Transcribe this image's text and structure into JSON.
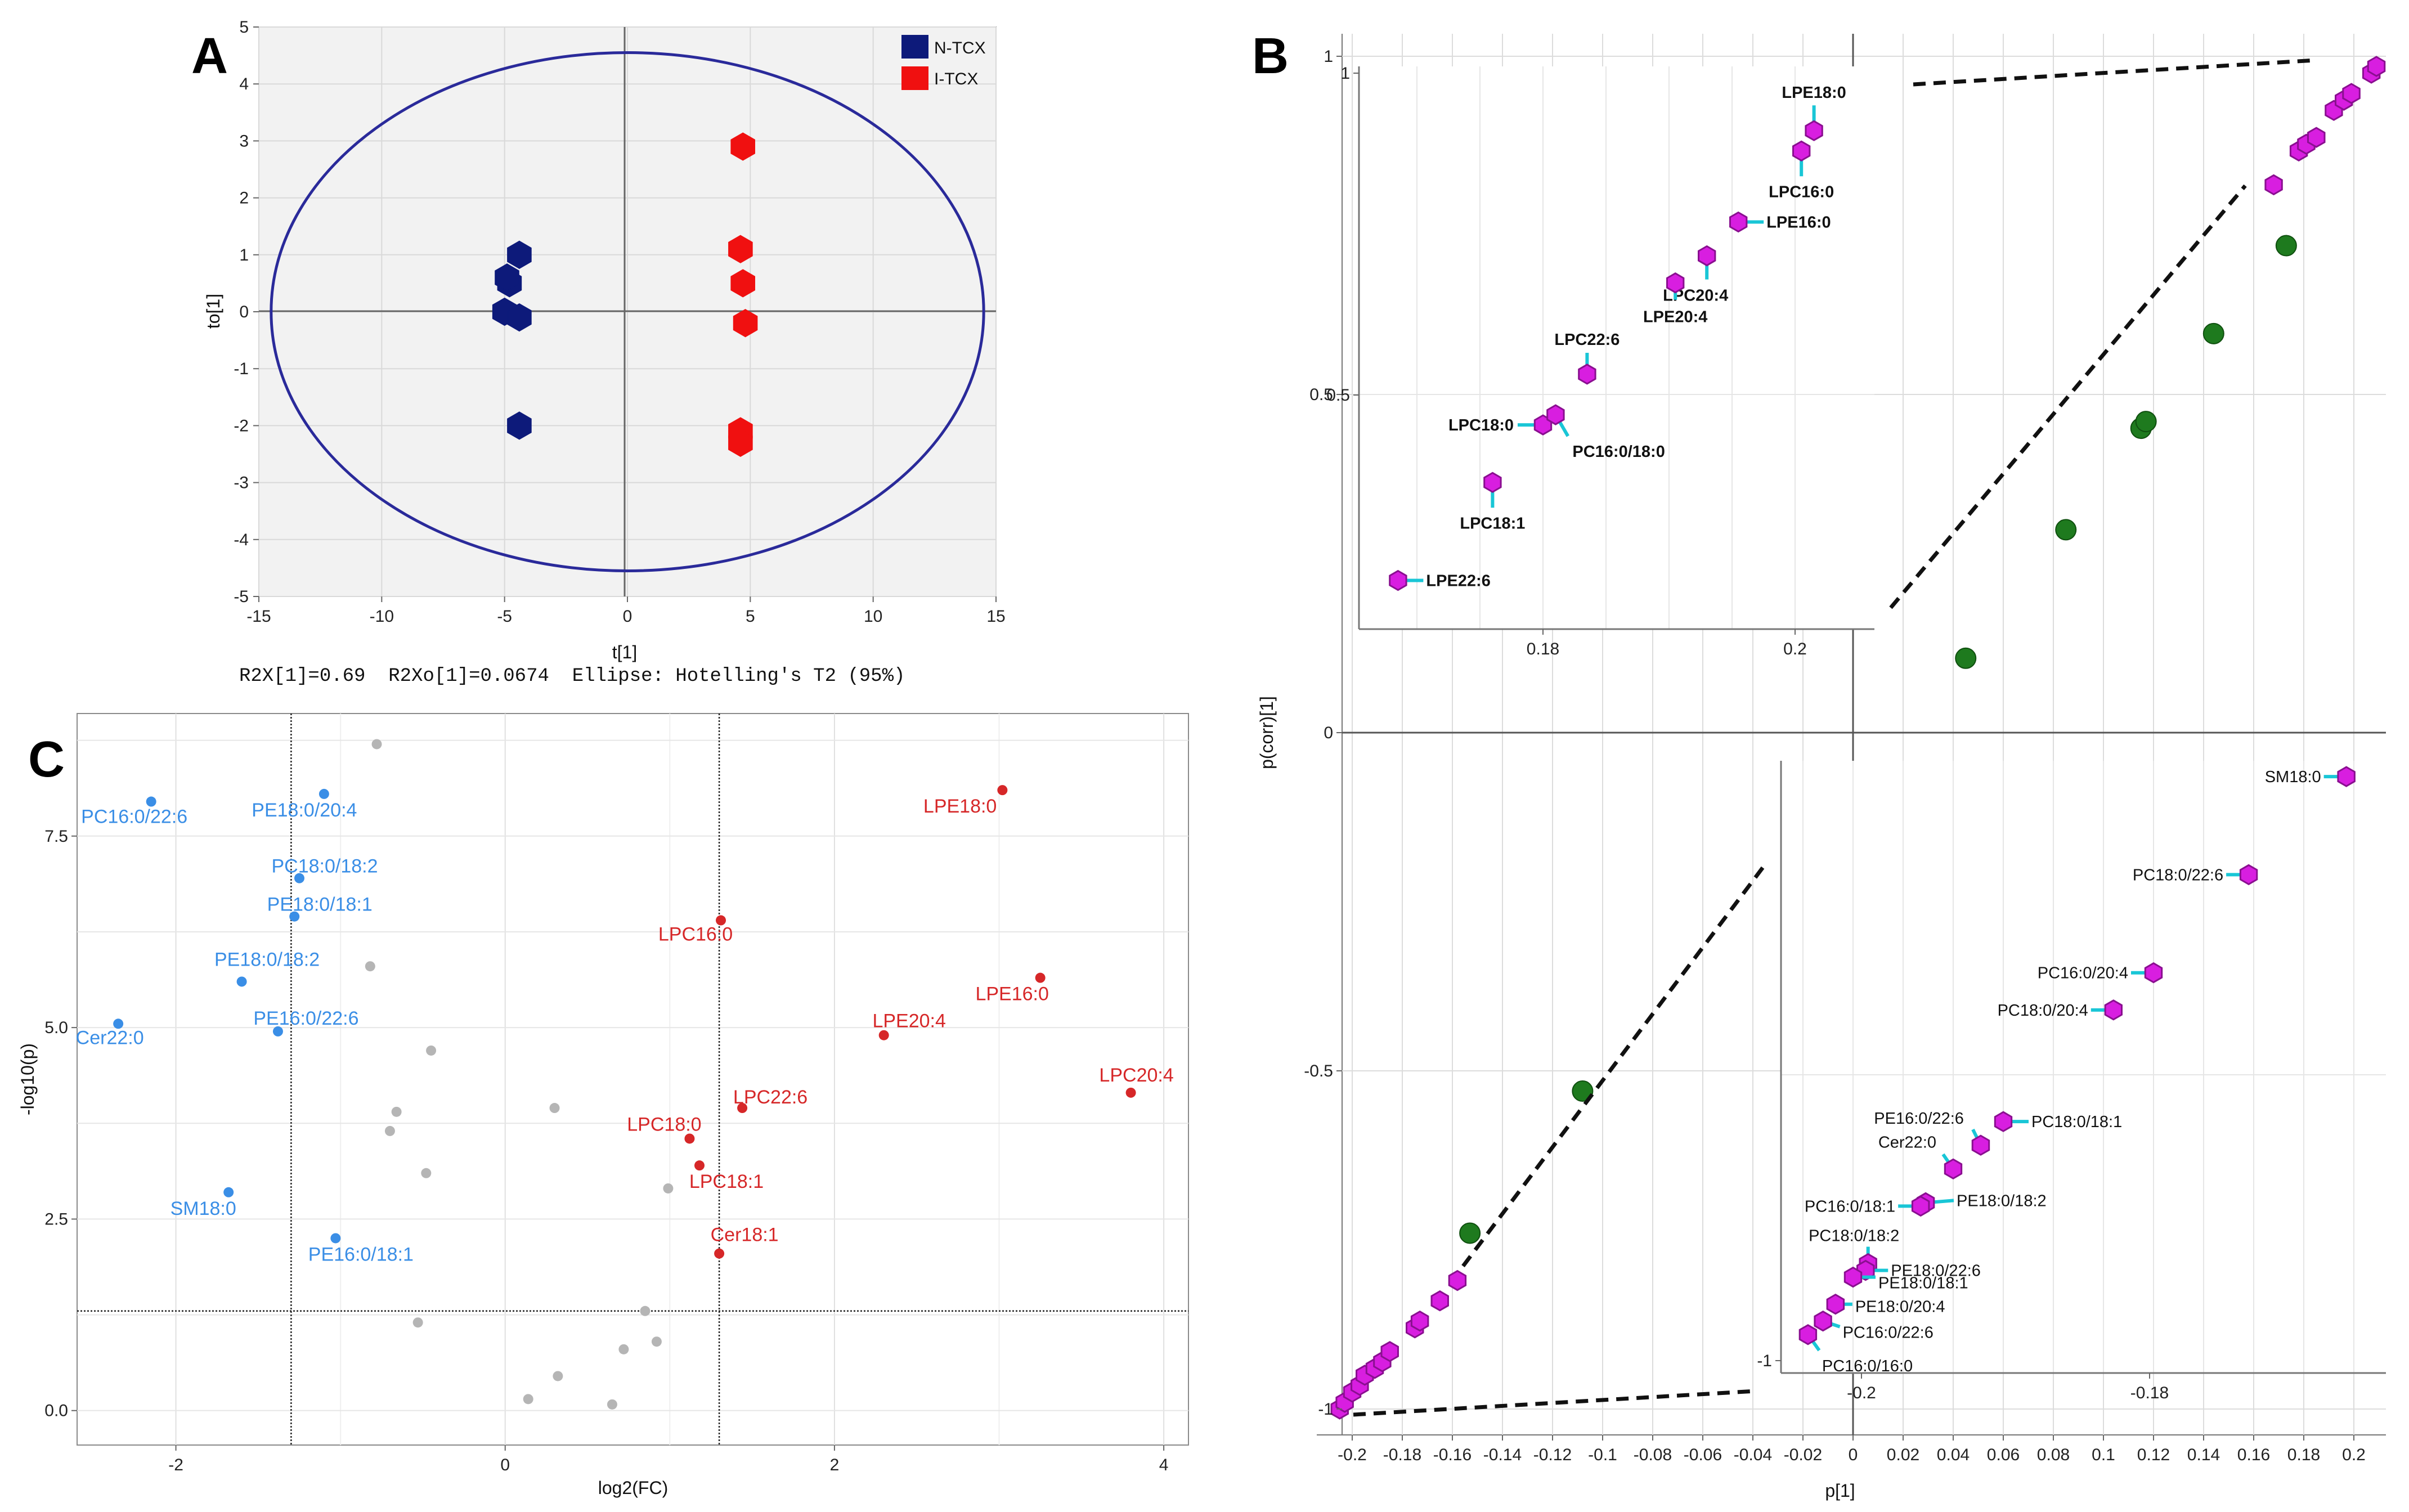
{
  "panels": {
    "a": "A",
    "b": "B",
    "c": "C"
  },
  "colors": {
    "ntcx": "#0d1a7a",
    "itcx": "#f01010",
    "ellipse": "#2a2a9a",
    "up": "#d62728",
    "down": "#3a8ee6",
    "ns": "#b5b5b5",
    "magenta": "#d81ee0",
    "cyan": "#19c6d6",
    "green": "#1e7a1e"
  },
  "chart_data": [
    {
      "panel": "A",
      "type": "scatter",
      "title": "",
      "xlabel": "t[1]",
      "ylabel": "to[1]",
      "xlim": [
        -15,
        15
      ],
      "ylim": [
        -5,
        5
      ],
      "xticks": [
        "-15",
        "-10",
        "-5",
        "0",
        "5",
        "10",
        "15"
      ],
      "yticks": [
        "-5",
        "-4",
        "-3",
        "-2",
        "-1",
        "0",
        "1",
        "2",
        "3",
        "4",
        "5"
      ],
      "footer": "R2X[1]=0.69  R2Xo[1]=0.0674  Ellipse: Hotelling's T2 (95%)",
      "legend": [
        {
          "name": "N-TCX",
          "color": "#0d1a7a"
        },
        {
          "name": "I-TCX",
          "color": "#f01010"
        }
      ],
      "ellipse": {
        "rx": 14.5,
        "ry": 4.55
      },
      "series": [
        {
          "name": "N-TCX",
          "points": [
            [
              -4.4,
              1.0
            ],
            [
              -4.8,
              0.5
            ],
            [
              -4.9,
              0.6
            ],
            [
              -5.0,
              0.0
            ],
            [
              -4.4,
              -0.1
            ],
            [
              -4.4,
              -2.0
            ]
          ]
        },
        {
          "name": "I-TCX",
          "points": [
            [
              4.7,
              2.9
            ],
            [
              4.6,
              1.1
            ],
            [
              4.7,
              0.5
            ],
            [
              4.8,
              -0.2
            ],
            [
              4.6,
              -2.1
            ],
            [
              4.6,
              -2.3
            ]
          ]
        }
      ]
    },
    {
      "panel": "B",
      "type": "scatter",
      "title": "",
      "xlabel": "p[1]",
      "ylabel": "p(corr)[1]",
      "xlim": [
        -0.215,
        0.215
      ],
      "ylim": [
        -1.02,
        1.02
      ],
      "xticks": [
        "-0.2",
        "-0.18",
        "-0.16",
        "-0.14",
        "-0.12",
        "-0.1",
        "-0.08",
        "-0.06",
        "-0.04",
        "-0.02",
        "0",
        "0.02",
        "0.04",
        "0.06",
        "0.08",
        "0.1",
        "0.12",
        "0.14",
        "0.16",
        "0.18",
        "0.2"
      ],
      "yticks": [
        "-1",
        "-0.5",
        "0",
        "0.5",
        "1"
      ],
      "significant_points": [
        [
          -0.205,
          -1.0
        ],
        [
          -0.203,
          -0.99
        ],
        [
          -0.2,
          -0.975
        ],
        [
          -0.197,
          -0.965
        ],
        [
          -0.195,
          -0.95
        ],
        [
          -0.191,
          -0.94
        ],
        [
          -0.188,
          -0.93
        ],
        [
          -0.185,
          -0.915
        ],
        [
          -0.175,
          -0.88
        ],
        [
          -0.173,
          -0.87
        ],
        [
          -0.165,
          -0.84
        ],
        [
          -0.158,
          -0.81
        ],
        [
          0.168,
          0.81
        ],
        [
          0.178,
          0.86
        ],
        [
          0.181,
          0.87
        ],
        [
          0.185,
          0.88
        ],
        [
          0.192,
          0.92
        ],
        [
          0.196,
          0.935
        ],
        [
          0.199,
          0.945
        ],
        [
          0.207,
          0.975
        ],
        [
          0.209,
          0.985
        ]
      ],
      "other_points": [
        [
          -0.153,
          -0.74
        ],
        [
          -0.108,
          -0.53
        ],
        [
          0.045,
          0.11
        ],
        [
          0.085,
          0.3
        ],
        [
          0.115,
          0.45
        ],
        [
          0.117,
          0.46
        ],
        [
          0.144,
          0.59
        ],
        [
          0.173,
          0.72
        ]
      ],
      "inset_top": {
        "xticks": [
          "0.18",
          "0.2"
        ],
        "yticks": [
          "0.5",
          "1"
        ],
        "points": [
          {
            "label": "LPE18:0",
            "x": 0.2015,
            "y": 0.89
          },
          {
            "label": "LPC16:0",
            "x": 0.2005,
            "y": 0.86
          },
          {
            "label": "LPE16:0",
            "x": 0.1955,
            "y": 0.755
          },
          {
            "label": "LPC20:4",
            "x": 0.193,
            "y": 0.705
          },
          {
            "label": "LPE20:4",
            "x": 0.1905,
            "y": 0.665
          },
          {
            "label": "LPC22:6",
            "x": 0.1835,
            "y": 0.53
          },
          {
            "label": "LPC18:0",
            "x": 0.18,
            "y": 0.455
          },
          {
            "label": "PC16:0/18:0",
            "x": 0.181,
            "y": 0.47
          },
          {
            "label": "LPC18:1",
            "x": 0.176,
            "y": 0.37
          },
          {
            "label": "LPE22:6",
            "x": 0.1685,
            "y": 0.225
          }
        ]
      },
      "inset_bottom": {
        "xticks": [
          "-0.2",
          "-0.18"
        ],
        "yticks": [
          "-1"
        ],
        "points": [
          {
            "label": "SM18:0",
            "x": 0.197,
            "y": -0.065
          },
          {
            "label": "PC18:0/22:6",
            "x": 0.158,
            "y": -0.21
          },
          {
            "label": "PC16:0/20:4",
            "x": 0.12,
            "y": -0.355
          },
          {
            "label": "PC18:0/20:4",
            "x": 0.104,
            "y": -0.41
          },
          {
            "label": "PC18:0/18:1",
            "x": 0.06,
            "y": -0.575
          },
          {
            "label": "PE16:0/22:6",
            "x": 0.051,
            "y": -0.61
          },
          {
            "label": "Cer22:0",
            "x": 0.04,
            "y": -0.645
          },
          {
            "label": "PE18:0/18:2",
            "x": 0.029,
            "y": -0.695
          },
          {
            "label": "PC16:0/18:1",
            "x": 0.027,
            "y": -0.7
          },
          {
            "label": "PC18:0/18:2",
            "x": 0.006,
            "y": -0.785
          },
          {
            "label": "PE18:0/22:6",
            "x": 0.005,
            "y": -0.795
          },
          {
            "label": "PE18:0/18:1",
            "x": 0.0,
            "y": -0.805
          },
          {
            "label": "PE18:0/20:4",
            "x": -0.007,
            "y": -0.845
          },
          {
            "label": "PC16:0/22:6",
            "x": -0.012,
            "y": -0.87
          },
          {
            "label": "PC16:0/16:0",
            "x": -0.018,
            "y": -0.89
          }
        ]
      }
    },
    {
      "panel": "C",
      "type": "scatter",
      "title": "",
      "xlabel": "log2(FC)",
      "ylabel": "-log10(p)",
      "xlim": [
        -2.6,
        4.15
      ],
      "ylim": [
        -0.45,
        9.1
      ],
      "xticks": [
        "-2",
        "0",
        "2",
        "4"
      ],
      "yticks": [
        "0.0",
        "2.5",
        "5.0",
        "7.5"
      ],
      "thresholds": {
        "fc": [
          -1.3,
          1.3
        ],
        "p": 1.3
      },
      "up": [
        {
          "label": "LPE18:0",
          "x": 3.02,
          "y": 8.1
        },
        {
          "label": "LPC16:0",
          "x": 1.31,
          "y": 6.4
        },
        {
          "label": "LPE16:0",
          "x": 3.25,
          "y": 5.65
        },
        {
          "label": "LPE20:4",
          "x": 2.3,
          "y": 4.9
        },
        {
          "label": "LPC20:4",
          "x": 3.8,
          "y": 4.15
        },
        {
          "label": "LPC22:6",
          "x": 1.44,
          "y": 3.95
        },
        {
          "label": "LPC18:0",
          "x": 1.12,
          "y": 3.55
        },
        {
          "label": "LPC18:1",
          "x": 1.18,
          "y": 3.2
        },
        {
          "label": "Cer18:1",
          "x": 1.3,
          "y": 2.05
        }
      ],
      "down": [
        {
          "label": "PC16:0/22:6",
          "x": -2.15,
          "y": 7.95
        },
        {
          "label": "PE18:0/20:4",
          "x": -1.1,
          "y": 8.05
        },
        {
          "label": "PC18:0/18:2",
          "x": -1.25,
          "y": 6.95
        },
        {
          "label": "PE18:0/18:1",
          "x": -1.28,
          "y": 6.45
        },
        {
          "label": "PE18:0/18:2",
          "x": -1.6,
          "y": 5.6
        },
        {
          "label": "Cer22:0",
          "x": -2.35,
          "y": 5.05
        },
        {
          "label": "PE16:0/22:6",
          "x": -1.38,
          "y": 4.95
        },
        {
          "label": "SM18:0",
          "x": -1.68,
          "y": 2.85
        },
        {
          "label": "PE16:0/18:1",
          "x": -1.03,
          "y": 2.25
        }
      ],
      "ns": [
        [
          -0.78,
          8.7
        ],
        [
          -0.82,
          5.8
        ],
        [
          -0.45,
          4.7
        ],
        [
          -0.66,
          3.9
        ],
        [
          -0.7,
          3.65
        ],
        [
          -0.48,
          3.1
        ],
        [
          0.3,
          3.95
        ],
        [
          0.99,
          2.9
        ],
        [
          0.85,
          1.3
        ],
        [
          0.92,
          0.9
        ],
        [
          0.72,
          0.8
        ],
        [
          -0.53,
          1.15
        ],
        [
          0.32,
          0.45
        ],
        [
          0.14,
          0.15
        ],
        [
          0.65,
          0.08
        ]
      ]
    }
  ]
}
